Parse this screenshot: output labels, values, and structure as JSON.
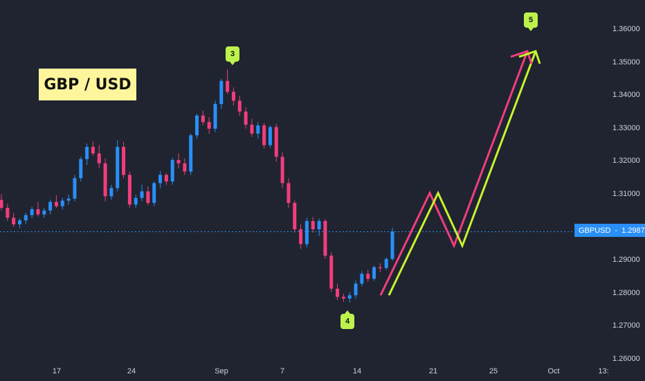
{
  "title": "GBP / USD",
  "symbol_tag": {
    "symbol": "GBPUSD",
    "price": "1.29877"
  },
  "wave_labels": [
    "3",
    "4",
    "5"
  ],
  "colors": {
    "background": "#1f2430",
    "up": "#2a8ff7",
    "down": "#f23d7d",
    "projection_pink": "#f23d7d",
    "projection_lime": "#c9f22e",
    "label": "#bdf24c",
    "title_bg": "#fff59d"
  },
  "chart_data": {
    "type": "candlestick",
    "title": "GBP / USD",
    "y_axis": {
      "ticks": [
        "1.36000",
        "1.35000",
        "1.34000",
        "1.33000",
        "1.32000",
        "1.31000",
        "1.30000",
        "1.29000",
        "1.28000",
        "1.27000",
        "1.26000"
      ],
      "range": [
        1.26,
        1.3645
      ],
      "position": "right"
    },
    "x_axis": {
      "ticks": [
        "17",
        "24",
        "Sep",
        "7",
        "14",
        "21",
        "25",
        "Oct",
        "13:"
      ]
    },
    "last_price": 1.29877,
    "swing_points": [
      {
        "label": "3",
        "price": 1.348
      },
      {
        "label": "4",
        "price": 1.2775
      },
      {
        "label": "5",
        "price": 1.3535
      }
    ],
    "projection_path": [
      1.2795,
      1.3105,
      1.2945,
      1.3535
    ],
    "series": [
      {
        "values": [
          [
            1.3084,
            1.3102,
            1.3052,
            1.306
          ],
          [
            1.306,
            1.3072,
            1.302,
            1.303
          ],
          [
            1.303,
            1.3045,
            1.3002,
            1.301
          ],
          [
            1.301,
            1.3028,
            1.2998,
            1.3022
          ],
          [
            1.3022,
            1.3045,
            1.3012,
            1.3038
          ],
          [
            1.3038,
            1.3063,
            1.3028,
            1.3056
          ],
          [
            1.3056,
            1.3078,
            1.3034,
            1.304
          ],
          [
            1.304,
            1.306,
            1.303,
            1.3052
          ],
          [
            1.3052,
            1.3085,
            1.304,
            1.3078
          ],
          [
            1.3078,
            1.3098,
            1.306,
            1.3065
          ],
          [
            1.3065,
            1.309,
            1.3055,
            1.3082
          ],
          [
            1.3082,
            1.31,
            1.307,
            1.3088
          ],
          [
            1.3088,
            1.316,
            1.308,
            1.315
          ],
          [
            1.315,
            1.3215,
            1.314,
            1.3208
          ],
          [
            1.3208,
            1.3255,
            1.319,
            1.3245
          ],
          [
            1.3245,
            1.3262,
            1.3218,
            1.3225
          ],
          [
            1.3225,
            1.325,
            1.318,
            1.3195
          ],
          [
            1.3195,
            1.321,
            1.308,
            1.3095
          ],
          [
            1.3095,
            1.313,
            1.3085,
            1.312
          ],
          [
            1.312,
            1.3265,
            1.311,
            1.3245
          ],
          [
            1.3245,
            1.326,
            1.315,
            1.316
          ],
          [
            1.316,
            1.317,
            1.306,
            1.307
          ],
          [
            1.307,
            1.31,
            1.306,
            1.309
          ],
          [
            1.309,
            1.313,
            1.308,
            1.311
          ],
          [
            1.311,
            1.3125,
            1.3068,
            1.3075
          ],
          [
            1.3075,
            1.314,
            1.3065,
            1.3135
          ],
          [
            1.3135,
            1.3172,
            1.312,
            1.316
          ],
          [
            1.316,
            1.3165,
            1.313,
            1.314
          ],
          [
            1.314,
            1.3212,
            1.313,
            1.3205
          ],
          [
            1.3205,
            1.3225,
            1.318,
            1.3195
          ],
          [
            1.3195,
            1.321,
            1.316,
            1.317
          ],
          [
            1.317,
            1.3285,
            1.316,
            1.328
          ],
          [
            1.328,
            1.3345,
            1.327,
            1.334
          ],
          [
            1.334,
            1.3355,
            1.331,
            1.332
          ],
          [
            1.332,
            1.3335,
            1.3285,
            1.33
          ],
          [
            1.33,
            1.3385,
            1.329,
            1.3375
          ],
          [
            1.3375,
            1.3452,
            1.336,
            1.3445
          ],
          [
            1.3445,
            1.348,
            1.3405,
            1.3412
          ],
          [
            1.3412,
            1.3425,
            1.337,
            1.3385
          ],
          [
            1.3385,
            1.34,
            1.334,
            1.3352
          ],
          [
            1.3352,
            1.3365,
            1.33,
            1.3312
          ],
          [
            1.3312,
            1.333,
            1.3275,
            1.3285
          ],
          [
            1.3285,
            1.332,
            1.327,
            1.331
          ],
          [
            1.331,
            1.3318,
            1.324,
            1.325
          ],
          [
            1.325,
            1.331,
            1.3242,
            1.3305
          ],
          [
            1.3305,
            1.3315,
            1.32,
            1.3215
          ],
          [
            1.3215,
            1.3228,
            1.312,
            1.3135
          ],
          [
            1.3135,
            1.315,
            1.306,
            1.3075
          ],
          [
            1.3075,
            1.3082,
            1.2985,
            1.2995
          ],
          [
            1.2995,
            1.301,
            1.2935,
            1.295
          ],
          [
            1.295,
            1.303,
            1.294,
            1.302
          ],
          [
            1.302,
            1.3032,
            1.2985,
            1.2995
          ],
          [
            1.2995,
            1.3028,
            1.2975,
            1.302
          ],
          [
            1.302,
            1.3025,
            1.2905,
            1.2915
          ],
          [
            1.2915,
            1.2925,
            1.2805,
            1.2815
          ],
          [
            1.2815,
            1.283,
            1.278,
            1.279
          ],
          [
            1.279,
            1.28,
            1.2775,
            1.2785
          ],
          [
            1.2785,
            1.2805,
            1.2772,
            1.2795
          ],
          [
            1.2795,
            1.284,
            1.2785,
            1.283
          ],
          [
            1.283,
            1.2868,
            1.2822,
            1.286
          ],
          [
            1.286,
            1.2872,
            1.2835,
            1.2845
          ],
          [
            1.2845,
            1.2885,
            1.2838,
            1.288
          ],
          [
            1.288,
            1.2892,
            1.2865,
            1.2878
          ],
          [
            1.2878,
            1.291,
            1.2872,
            1.2905
          ],
          [
            1.2905,
            1.3,
            1.29,
            1.2988
          ]
        ]
      }
    ]
  }
}
